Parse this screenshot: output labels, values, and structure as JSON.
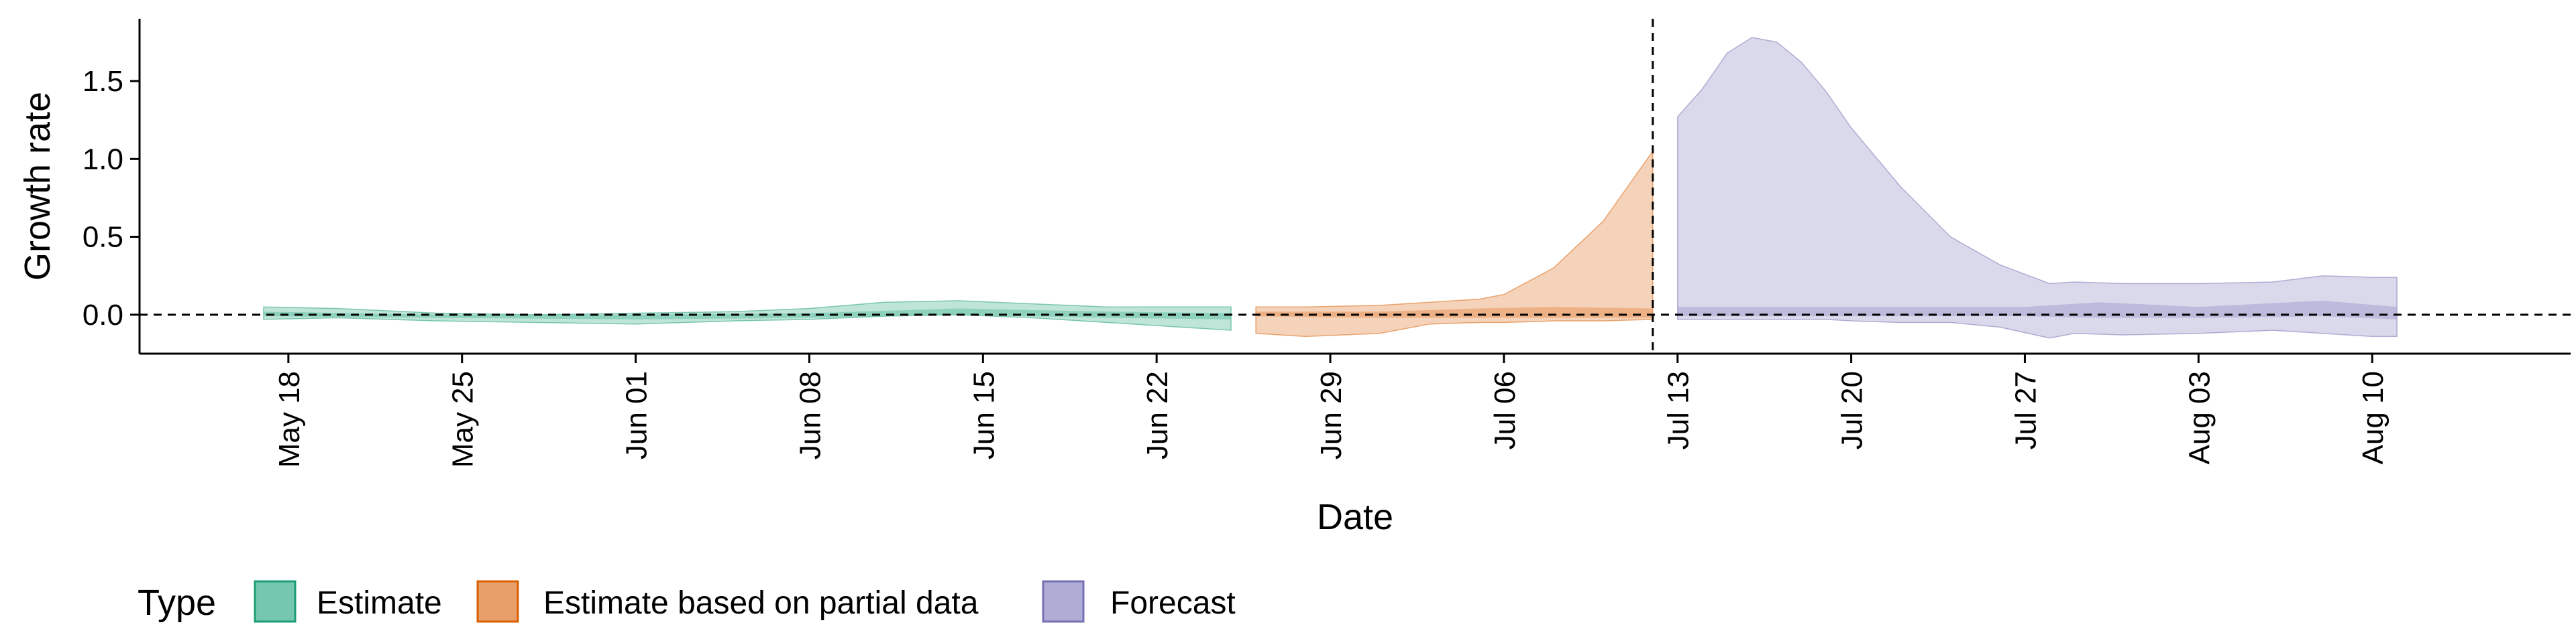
{
  "chart_data": {
    "type": "area",
    "xlabel": "Date",
    "ylabel": "Growth rate",
    "ylim": [
      -0.25,
      1.9
    ],
    "y_ticks": [
      "0.0",
      "0.5",
      "1.0",
      "1.5"
    ],
    "x_ticks": [
      "May 18",
      "May 25",
      "Jun 01",
      "Jun 08",
      "Jun 15",
      "Jun 22",
      "Jun 29",
      "Jul 06",
      "Jul 13",
      "Jul 20",
      "Jul 27",
      "Aug 03",
      "Aug 10"
    ],
    "x_tick_dates": [
      "2020-05-18",
      "2020-05-25",
      "2020-06-01",
      "2020-06-08",
      "2020-06-15",
      "2020-06-22",
      "2020-06-29",
      "2020-07-06",
      "2020-07-13",
      "2020-07-20",
      "2020-07-27",
      "2020-08-03",
      "2020-08-10"
    ],
    "xlim": [
      "2020-05-12",
      "2020-08-18"
    ],
    "reference_lines": {
      "horizontal_y": 0.0,
      "vertical_date": "2020-07-12",
      "style": "dashed"
    },
    "grid": false,
    "legend": {
      "title": "Type",
      "position": "bottom-left",
      "entries": [
        "Estimate",
        "Estimate based on partial data",
        "Forecast"
      ]
    },
    "colors": {
      "Estimate": {
        "fill": "#66c2a5",
        "line": "#1b9e77"
      },
      "Estimate based on partial data": {
        "fill": "#e7955a",
        "line": "#d95f02"
      },
      "Forecast": {
        "fill": "#a6a3d0",
        "line": "#7570b3"
      }
    },
    "series": [
      {
        "name": "Estimate",
        "band": "outer",
        "x": [
          "2020-05-17",
          "2020-05-20",
          "2020-05-24",
          "2020-05-28",
          "2020-06-01",
          "2020-06-05",
          "2020-06-08",
          "2020-06-11",
          "2020-06-14",
          "2020-06-17",
          "2020-06-20",
          "2020-06-22",
          "2020-06-25"
        ],
        "lower": [
          -0.03,
          -0.02,
          -0.04,
          -0.05,
          -0.06,
          -0.04,
          -0.03,
          -0.01,
          0.0,
          -0.02,
          -0.05,
          -0.07,
          -0.1
        ],
        "upper": [
          0.05,
          0.04,
          0.01,
          0.0,
          0.01,
          0.02,
          0.04,
          0.08,
          0.09,
          0.07,
          0.05,
          0.05,
          0.05
        ]
      },
      {
        "name": "Estimate",
        "band": "inner",
        "x": [
          "2020-05-17",
          "2020-05-24",
          "2020-06-01",
          "2020-06-08",
          "2020-06-14",
          "2020-06-20",
          "2020-06-25"
        ],
        "lower": [
          -0.01,
          -0.02,
          -0.03,
          -0.02,
          0.0,
          -0.02,
          -0.03
        ],
        "upper": [
          0.02,
          0.0,
          0.0,
          0.01,
          0.04,
          0.02,
          0.01
        ]
      },
      {
        "name": "Estimate based on partial data",
        "band": "outer",
        "x": [
          "2020-06-26",
          "2020-06-28",
          "2020-07-01",
          "2020-07-03",
          "2020-07-05",
          "2020-07-06",
          "2020-07-08",
          "2020-07-10",
          "2020-07-12"
        ],
        "lower": [
          -0.12,
          -0.14,
          -0.12,
          -0.06,
          -0.05,
          -0.05,
          -0.04,
          -0.04,
          -0.03
        ],
        "upper": [
          0.05,
          0.05,
          0.06,
          0.08,
          0.1,
          0.13,
          0.3,
          0.6,
          1.05
        ]
      },
      {
        "name": "Estimate based on partial data",
        "band": "inner",
        "x": [
          "2020-06-26",
          "2020-07-01",
          "2020-07-05",
          "2020-07-08",
          "2020-07-12"
        ],
        "lower": [
          -0.01,
          -0.02,
          -0.02,
          -0.02,
          -0.02
        ],
        "upper": [
          0.02,
          0.02,
          0.04,
          0.05,
          0.04
        ]
      },
      {
        "name": "Forecast",
        "band": "outer",
        "x": [
          "2020-07-13",
          "2020-07-14",
          "2020-07-15",
          "2020-07-16",
          "2020-07-17",
          "2020-07-18",
          "2020-07-19",
          "2020-07-20",
          "2020-07-22",
          "2020-07-24",
          "2020-07-26",
          "2020-07-28",
          "2020-07-29",
          "2020-07-31",
          "2020-08-03",
          "2020-08-06",
          "2020-08-08",
          "2020-08-10",
          "2020-08-11"
        ],
        "lower": [
          -0.03,
          -0.03,
          -0.03,
          -0.03,
          -0.03,
          -0.03,
          -0.03,
          -0.04,
          -0.05,
          -0.05,
          -0.08,
          -0.15,
          -0.12,
          -0.13,
          -0.12,
          -0.1,
          -0.12,
          -0.14,
          -0.14
        ],
        "upper": [
          1.27,
          1.45,
          1.68,
          1.78,
          1.75,
          1.62,
          1.43,
          1.2,
          0.82,
          0.5,
          0.32,
          0.2,
          0.21,
          0.2,
          0.2,
          0.21,
          0.25,
          0.24,
          0.24
        ]
      },
      {
        "name": "Forecast",
        "band": "inner",
        "x": [
          "2020-07-13",
          "2020-07-20",
          "2020-07-27",
          "2020-07-30",
          "2020-08-03",
          "2020-08-08",
          "2020-08-11"
        ],
        "lower": [
          -0.01,
          -0.01,
          -0.01,
          -0.02,
          -0.02,
          -0.01,
          -0.03
        ],
        "upper": [
          0.05,
          0.05,
          0.05,
          0.08,
          0.05,
          0.09,
          0.05
        ]
      }
    ]
  }
}
